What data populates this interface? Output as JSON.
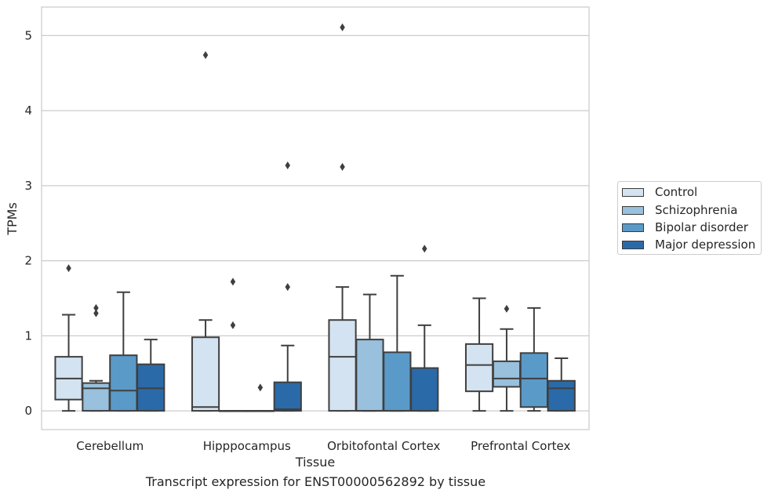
{
  "chart_data": {
    "type": "boxplot",
    "caption": "Transcript expression for ENST00000562892 by tissue",
    "xlabel": "Tissue",
    "ylabel": "TPMs",
    "ylim": [
      -0.25,
      5.38
    ],
    "yticks": [
      0,
      1,
      2,
      3,
      4,
      5
    ],
    "grid": "horizontal",
    "legend_position": "right",
    "categories": [
      "Cerebellum",
      "Hipppocampus",
      "Orbitofontal Cortex",
      "Prefrontal Cortex"
    ],
    "series": [
      {
        "name": "Control",
        "color": "#d4e3f1",
        "boxes": [
          {
            "whisker_low": 0,
            "q1": 0.15,
            "median": 0.43,
            "q3": 0.72,
            "whisker_high": 1.28,
            "outliers": [
              1.9
            ]
          },
          {
            "whisker_low": 0,
            "q1": 0,
            "median": 0.05,
            "q3": 0.98,
            "whisker_high": 1.21,
            "outliers": [
              4.74
            ]
          },
          {
            "whisker_low": 0,
            "q1": 0,
            "median": 0.72,
            "q3": 1.21,
            "whisker_high": 1.65,
            "outliers": [
              3.25,
              5.11
            ]
          },
          {
            "whisker_low": 0,
            "q1": 0.26,
            "median": 0.61,
            "q3": 0.89,
            "whisker_high": 1.5,
            "outliers": []
          }
        ]
      },
      {
        "name": "Schizophrenia",
        "color": "#99c0dc",
        "boxes": [
          {
            "whisker_low": 0,
            "q1": 0,
            "median": 0.3,
            "q3": 0.37,
            "whisker_high": 0.4,
            "outliers": [
              1.3,
              1.37
            ]
          },
          {
            "whisker_low": 0,
            "q1": 0,
            "median": 0,
            "q3": 0,
            "whisker_high": 0,
            "outliers": [
              1.14,
              1.72
            ]
          },
          {
            "whisker_low": 0,
            "q1": 0,
            "median": 0,
            "q3": 0.95,
            "whisker_high": 1.55,
            "outliers": []
          },
          {
            "whisker_low": 0,
            "q1": 0.32,
            "median": 0.43,
            "q3": 0.66,
            "whisker_high": 1.09,
            "outliers": [
              1.36
            ]
          }
        ]
      },
      {
        "name": "Bipolar disorder",
        "color": "#5a9ac8",
        "boxes": [
          {
            "whisker_low": 0,
            "q1": 0,
            "median": 0.27,
            "q3": 0.74,
            "whisker_high": 1.58,
            "outliers": []
          },
          {
            "whisker_low": 0,
            "q1": 0,
            "median": 0,
            "q3": 0,
            "whisker_high": 0,
            "outliers": [
              0.31
            ]
          },
          {
            "whisker_low": 0,
            "q1": 0,
            "median": 0,
            "q3": 0.78,
            "whisker_high": 1.8,
            "outliers": []
          },
          {
            "whisker_low": 0,
            "q1": 0.05,
            "median": 0.43,
            "q3": 0.77,
            "whisker_high": 1.37,
            "outliers": []
          }
        ]
      },
      {
        "name": "Major depression",
        "color": "#2b6aa8",
        "boxes": [
          {
            "whisker_low": 0,
            "q1": 0,
            "median": 0.3,
            "q3": 0.62,
            "whisker_high": 0.95,
            "outliers": []
          },
          {
            "whisker_low": 0,
            "q1": 0,
            "median": 0.02,
            "q3": 0.38,
            "whisker_high": 0.87,
            "outliers": [
              1.65,
              3.27
            ]
          },
          {
            "whisker_low": 0,
            "q1": 0,
            "median": 0,
            "q3": 0.57,
            "whisker_high": 1.14,
            "outliers": [
              2.16
            ]
          },
          {
            "whisker_low": 0,
            "q1": 0,
            "median": 0.3,
            "q3": 0.4,
            "whisker_high": 0.7,
            "outliers": []
          }
        ]
      }
    ]
  }
}
